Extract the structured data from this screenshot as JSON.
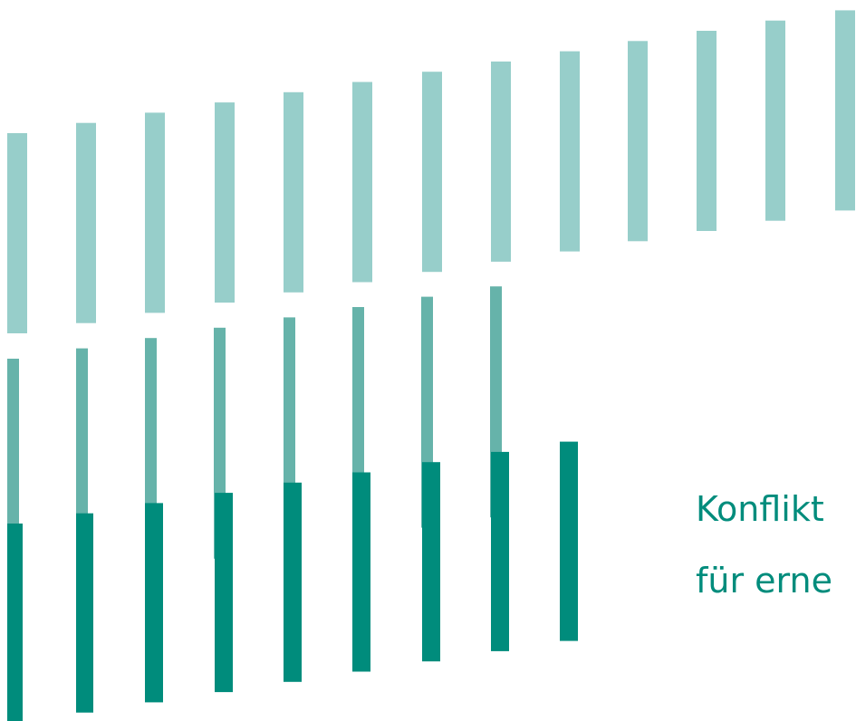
{
  "tagline": {
    "line1": "Konflikt",
    "line2": "für erne"
  },
  "colors": {
    "bar_light": "#97ceca",
    "bar_medium": "#66b3aa",
    "bar_dark": "#008c7c",
    "text": "#008c7c",
    "background": "#ffffff"
  }
}
